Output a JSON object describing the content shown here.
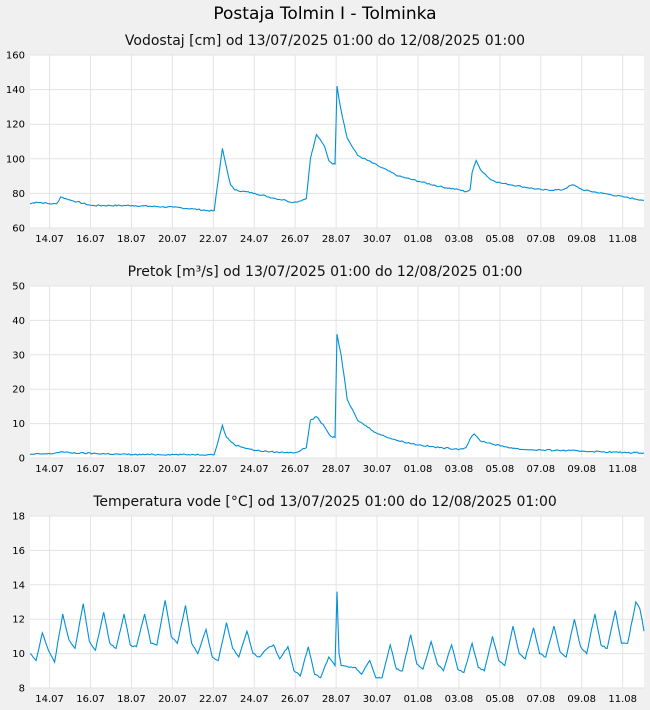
{
  "page": {
    "title": "Postaja Tolmin I - Tolminka"
  },
  "colors": {
    "line": "#0090d8",
    "plot_bg": "#ffffff",
    "grid": "#e3e3e3",
    "page_bg": "#f0f0f0"
  },
  "chart_data": [
    {
      "type": "line",
      "title": "Vodostaj [cm] od 13/07/2025 01:00 do 12/08/2025 01:00",
      "xlabel": "",
      "ylabel": "",
      "x_range": [
        "13/07/2025 01:00",
        "12/08/2025 01:00"
      ],
      "x_ticks": [
        "14.07",
        "16.07",
        "18.07",
        "20.07",
        "22.07",
        "24.07",
        "26.07",
        "28.07",
        "30.07",
        "01.08",
        "03.08",
        "05.08",
        "07.08",
        "09.08",
        "11.08"
      ],
      "y_ticks": [
        "60",
        "80",
        "100",
        "120",
        "140",
        "160"
      ],
      "ylim": [
        60,
        160
      ],
      "grid": true,
      "series": [
        {
          "x": [
            0,
            0.3,
            1,
            1.3,
            1.5,
            2,
            3,
            5,
            7,
            8,
            8.7,
            9,
            9.2,
            9.4,
            9.6,
            9.8,
            10,
            11,
            12,
            12.5,
            12.7,
            13,
            13.5,
            13.7,
            14,
            14.4,
            14.6,
            14.7,
            14.8,
            14.9,
            15,
            15.2,
            15.5,
            16,
            17,
            18,
            19,
            20,
            21,
            21.3,
            21.5,
            21.6,
            21.8,
            22,
            22.5,
            23,
            24,
            25,
            26,
            26.5,
            26.7,
            27,
            28,
            29,
            30
          ],
          "y": [
            74,
            75,
            74,
            74,
            78,
            76,
            73,
            73,
            72,
            71,
            70,
            70,
            88,
            106,
            95,
            85,
            82,
            80,
            77,
            76,
            75,
            75,
            77,
            100,
            114,
            107,
            99,
            98,
            97,
            97,
            142,
            128,
            112,
            102,
            96,
            90,
            87,
            84,
            82,
            81,
            82,
            92,
            99,
            94,
            88,
            86,
            84,
            82,
            82,
            85,
            84,
            82,
            80,
            78,
            76
          ]
        }
      ]
    },
    {
      "type": "line",
      "title": "Pretok [m³/s] od 13/07/2025 01:00 do 12/08/2025 01:00",
      "xlabel": "",
      "ylabel": "",
      "x_range": [
        "13/07/2025 01:00",
        "12/08/2025 01:00"
      ],
      "x_ticks": [
        "14.07",
        "16.07",
        "18.07",
        "20.07",
        "22.07",
        "24.07",
        "26.07",
        "28.07",
        "30.07",
        "01.08",
        "03.08",
        "05.08",
        "07.08",
        "09.08",
        "11.08"
      ],
      "y_ticks": [
        "0",
        "10",
        "20",
        "30",
        "40",
        "50"
      ],
      "ylim": [
        0,
        50
      ],
      "grid": true,
      "series": [
        {
          "x": [
            0,
            0.5,
            1,
            1.5,
            2,
            5,
            8,
            8.7,
            9,
            9.2,
            9.4,
            9.6,
            10,
            11,
            12,
            12.5,
            13,
            13.5,
            13.7,
            14,
            14.4,
            14.6,
            14.8,
            14.9,
            15,
            15.2,
            15.5,
            16,
            17,
            18,
            19,
            20,
            21,
            21.3,
            21.5,
            21.7,
            22,
            23,
            24,
            25,
            26,
            27,
            28,
            29,
            30
          ],
          "y": [
            1,
            1.2,
            1.2,
            1.8,
            1.5,
            1,
            1,
            1,
            1,
            5,
            9.5,
            6,
            3.8,
            2.2,
            1.7,
            1.6,
            1.6,
            3,
            11,
            12,
            9,
            7,
            6,
            6,
            36,
            30,
            17,
            11,
            7,
            5,
            3.8,
            3,
            2.6,
            3,
            5.5,
            7,
            5,
            3.5,
            2.5,
            2.3,
            2.2,
            2,
            1.8,
            1.6,
            1.5
          ]
        }
      ]
    },
    {
      "type": "line",
      "title": "Temperatura vode [°C] od 13/07/2025 01:00 do 12/08/2025 01:00",
      "xlabel": "",
      "ylabel": "",
      "x_range": [
        "13/07/2025 01:00",
        "12/08/2025 01:00"
      ],
      "x_ticks": [
        "14.07",
        "16.07",
        "18.07",
        "20.07",
        "22.07",
        "24.07",
        "26.07",
        "28.07",
        "30.07",
        "01.08",
        "03.08",
        "05.08",
        "07.08",
        "09.08",
        "11.08"
      ],
      "y_ticks": [
        "8",
        "10",
        "12",
        "14",
        "16",
        "18"
      ],
      "ylim": [
        8,
        18
      ],
      "grid": true,
      "series": [
        {
          "x": [
            0,
            0.3,
            0.6,
            0.9,
            1.2,
            1.6,
            1.9,
            2.2,
            2.6,
            2.9,
            3.2,
            3.6,
            3.9,
            4.2,
            4.6,
            4.9,
            5.2,
            5.6,
            5.9,
            6.2,
            6.6,
            6.9,
            7.2,
            7.6,
            7.9,
            8.2,
            8.6,
            8.9,
            9.2,
            9.6,
            9.9,
            10.2,
            10.6,
            10.9,
            11.2,
            11.6,
            11.9,
            12.2,
            12.6,
            12.9,
            13.2,
            13.6,
            13.9,
            14.2,
            14.6,
            14.9,
            15,
            15.1,
            15.2,
            15.6,
            15.9,
            16.2,
            16.6,
            16.9,
            17.2,
            17.6,
            17.9,
            18.2,
            18.6,
            18.9,
            19.2,
            19.6,
            19.9,
            20.2,
            20.6,
            20.9,
            21.2,
            21.6,
            21.9,
            22.2,
            22.6,
            22.9,
            23.2,
            23.6,
            23.9,
            24.2,
            24.6,
            24.9,
            25.2,
            25.6,
            25.9,
            26.2,
            26.6,
            26.9,
            27.2,
            27.6,
            27.9,
            28.2,
            28.6,
            28.9,
            29.2,
            29.6,
            29.8,
            30
          ],
          "y": [
            10,
            9.6,
            11.2,
            10.2,
            9.5,
            12.3,
            10.8,
            10.3,
            12.9,
            10.7,
            10.2,
            12.4,
            10.6,
            10.3,
            12.3,
            10.5,
            10.4,
            12.3,
            10.6,
            10.5,
            13.1,
            11,
            10.6,
            12.8,
            10.6,
            10,
            11.4,
            9.8,
            9.6,
            11.8,
            10.3,
            9.8,
            11.3,
            10,
            9.8,
            10.3,
            10.5,
            9.7,
            10.4,
            9,
            8.7,
            10.4,
            8.8,
            8.6,
            9.8,
            9.3,
            13.6,
            10,
            9.3,
            9.2,
            9.2,
            8.8,
            9.6,
            8.6,
            8.6,
            10.5,
            9.1,
            9,
            11.1,
            9.4,
            9.1,
            10.7,
            9.4,
            9,
            10.5,
            9.1,
            8.9,
            10.6,
            9.2,
            9,
            11,
            9.6,
            9.3,
            11.6,
            10,
            9.7,
            11.5,
            10,
            9.8,
            11.6,
            10.1,
            9.8,
            12,
            10.4,
            10,
            12.3,
            10.5,
            10.3,
            12.5,
            10.6,
            10.6,
            13,
            12.6,
            11.3
          ]
        }
      ]
    }
  ]
}
